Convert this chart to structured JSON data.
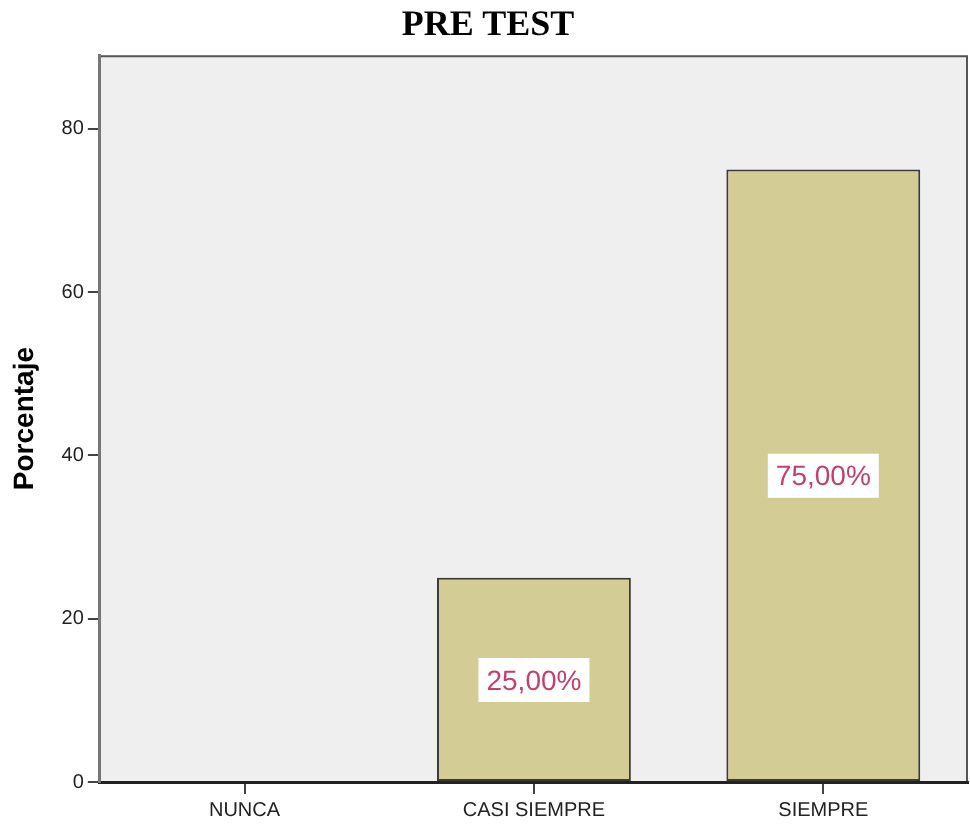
{
  "chart_data": {
    "type": "bar",
    "title": "PRE TEST",
    "ylabel": "Porcentaje",
    "categories": [
      "NUNCA",
      "CASI SIEMPRE",
      "SIEMPRE"
    ],
    "values": [
      0,
      25,
      75
    ],
    "value_labels": [
      null,
      "25,00%",
      "75,00%"
    ],
    "color": "#d3cc94",
    "ylim": [
      0,
      89
    ],
    "yticks": [
      0,
      20,
      40,
      60,
      80
    ],
    "grid": false
  }
}
